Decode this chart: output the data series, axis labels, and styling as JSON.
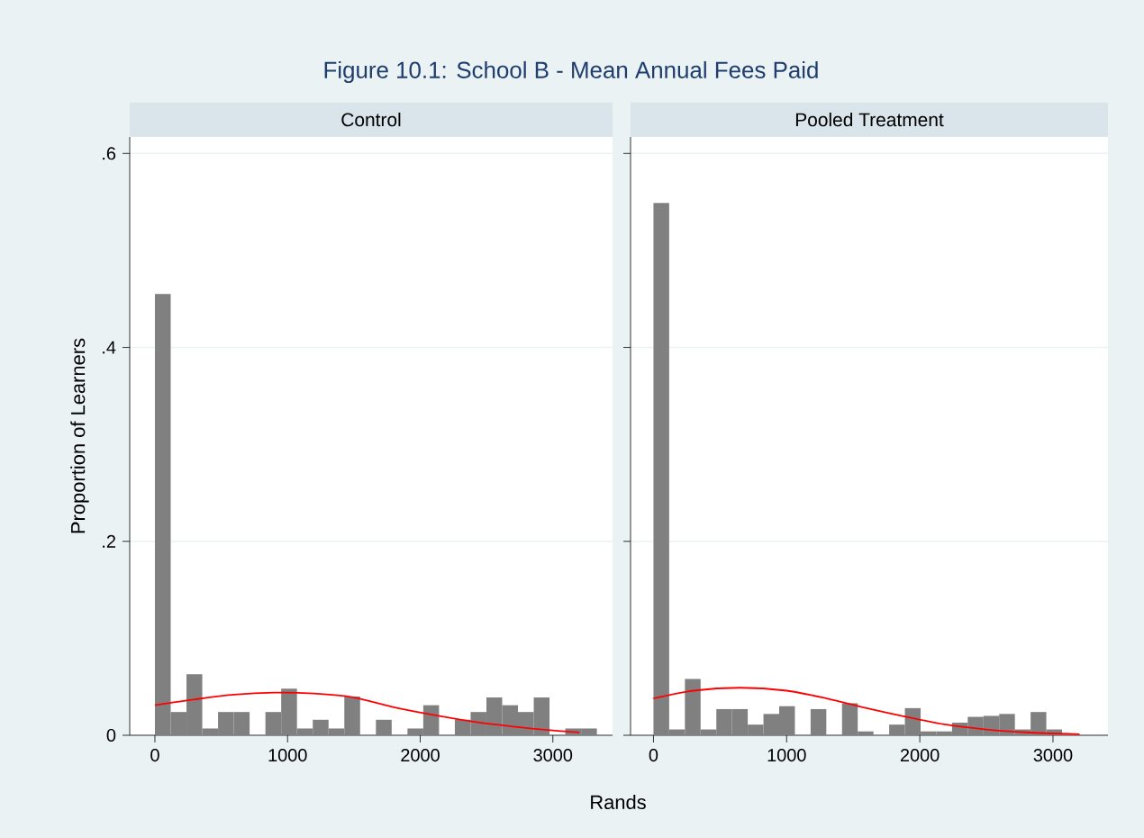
{
  "chart_data": [
    {
      "type": "histogram",
      "title": "Control",
      "ylabel": "Proportion of Learners",
      "xlabel": "Rands",
      "annotations": [
        "Figure 10.1: School B - Mean Annual Fees Paid"
      ],
      "xlim": [
        -190,
        3450
      ],
      "ylim": [
        0,
        0.617
      ],
      "xticks": [
        0,
        1000,
        2000,
        3000
      ],
      "yticks": [
        0,
        {
          "value": 0.2,
          "label": ".2"
        },
        {
          "value": 0.4,
          "label": ".4"
        },
        {
          "value": 0.6,
          "label": ".6"
        }
      ],
      "grid": "y",
      "series": [
        {
          "color": "#808080",
          "bins": [
            0,
            119,
            238,
            357,
            476,
            595,
            714,
            833,
            952,
            1071,
            1190,
            1309,
            1428,
            1547,
            1666,
            1785,
            1904,
            2023,
            2142,
            2261,
            2380,
            2499,
            2618,
            2737,
            2856,
            2975,
            3094,
            3213,
            3332
          ],
          "values": [
            0.455,
            0.024,
            0.063,
            0.007,
            0.024,
            0.024,
            0,
            0.024,
            0.048,
            0.007,
            0.016,
            0.007,
            0.04,
            0,
            0.016,
            0,
            0.007,
            0.031,
            0,
            0.016,
            0.024,
            0.039,
            0.031,
            0.024,
            0.039,
            0,
            0.007,
            0.007
          ]
        },
        {
          "type": "line",
          "color": "#ff0000",
          "x": [
            0,
            300,
            600,
            900,
            1200,
            1500,
            1800,
            2100,
            2400,
            2700,
            3000,
            3200
          ],
          "values": [
            0.031,
            0.037,
            0.042,
            0.044,
            0.043,
            0.039,
            0.029,
            0.021,
            0.014,
            0.009,
            0.005,
            0.003
          ]
        }
      ]
    },
    {
      "type": "histogram",
      "title": "Pooled Treatment",
      "tick_labels": "x",
      "xlim": [
        -172,
        3413
      ],
      "ylim": [
        0,
        0.617
      ],
      "xticks": [
        0,
        1000,
        2000,
        3000
      ],
      "yticks": [
        0,
        0.2,
        0.4,
        0.6
      ],
      "grid": "y",
      "series": [
        {
          "color": "#808080",
          "bins": [
            0,
            118,
            236,
            354,
            472,
            590,
            708,
            826,
            944,
            1062,
            1180,
            1298,
            1416,
            1534,
            1652,
            1770,
            1888,
            2006,
            2124,
            2242,
            2360,
            2478,
            2596,
            2714,
            2832,
            2950,
            3068
          ],
          "values": [
            0.549,
            0.006,
            0.058,
            0.006,
            0.027,
            0.027,
            0.011,
            0.022,
            0.03,
            0,
            0.027,
            0,
            0.033,
            0.004,
            0,
            0.011,
            0.028,
            0.004,
            0.004,
            0.013,
            0.019,
            0.02,
            0.022,
            0.006,
            0.024,
            0.006
          ]
        },
        {
          "type": "line",
          "color": "#ff0000",
          "x": [
            0,
            300,
            650,
            1000,
            1300,
            1600,
            1900,
            2200,
            2500,
            2800,
            3200
          ],
          "values": [
            0.038,
            0.046,
            0.049,
            0.046,
            0.038,
            0.028,
            0.019,
            0.011,
            0.006,
            0.003,
            0.001
          ]
        }
      ]
    }
  ]
}
